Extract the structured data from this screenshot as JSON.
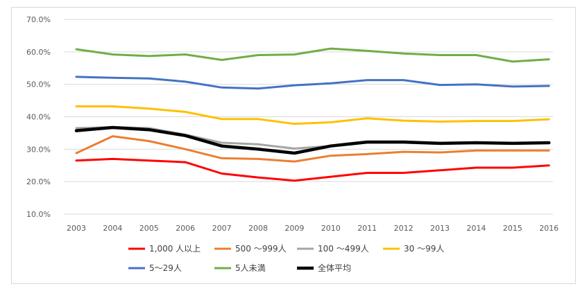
{
  "chart_data": {
    "type": "line",
    "title": "",
    "xlabel": "",
    "ylabel": "",
    "ylim": [
      0.1,
      0.7
    ],
    "yticks": [
      "10.0%",
      "20.0%",
      "30.0%",
      "40.0%",
      "50.0%",
      "60.0%",
      "70.0%"
    ],
    "grid": true,
    "legend_position": "bottom",
    "x": [
      "2003",
      "2004",
      "2005",
      "2006",
      "2007",
      "2008",
      "2009",
      "2010",
      "2011",
      "2012",
      "2013",
      "2014",
      "2015",
      "2016"
    ],
    "series": [
      {
        "name": "1,000 人以上",
        "color": "#ff0000",
        "width": 3,
        "values": [
          0.265,
          0.27,
          0.265,
          0.26,
          0.225,
          0.213,
          0.203,
          0.215,
          0.227,
          0.227,
          0.235,
          0.243,
          0.243,
          0.25
        ]
      },
      {
        "name": "500 〜999人",
        "color": "#ed7d31",
        "width": 3,
        "values": [
          0.288,
          0.34,
          0.325,
          0.3,
          0.272,
          0.27,
          0.262,
          0.28,
          0.285,
          0.292,
          0.29,
          0.296,
          0.296,
          0.296
        ]
      },
      {
        "name": "100 〜499人",
        "color": "#a5a5a5",
        "width": 3,
        "values": [
          0.365,
          0.368,
          0.365,
          0.345,
          0.32,
          0.315,
          0.302,
          0.31,
          0.32,
          0.32,
          0.316,
          0.32,
          0.318,
          0.32
        ]
      },
      {
        "name": "30 〜99人",
        "color": "#ffc000",
        "width": 3,
        "values": [
          0.432,
          0.432,
          0.425,
          0.415,
          0.393,
          0.393,
          0.378,
          0.383,
          0.395,
          0.388,
          0.385,
          0.387,
          0.387,
          0.392
        ]
      },
      {
        "name": "5〜29人",
        "color": "#4472c4",
        "width": 3,
        "values": [
          0.523,
          0.52,
          0.518,
          0.508,
          0.49,
          0.487,
          0.497,
          0.503,
          0.513,
          0.513,
          0.498,
          0.5,
          0.493,
          0.495
        ]
      },
      {
        "name": "5人未満",
        "color": "#70ad47",
        "width": 3,
        "values": [
          0.608,
          0.592,
          0.587,
          0.592,
          0.575,
          0.59,
          0.592,
          0.61,
          0.603,
          0.595,
          0.59,
          0.59,
          0.57,
          0.577
        ]
      },
      {
        "name": "全体平均",
        "color": "#000000",
        "width": 4.5,
        "values": [
          0.357,
          0.367,
          0.36,
          0.342,
          0.31,
          0.3,
          0.288,
          0.31,
          0.322,
          0.322,
          0.318,
          0.32,
          0.318,
          0.32
        ]
      }
    ]
  }
}
